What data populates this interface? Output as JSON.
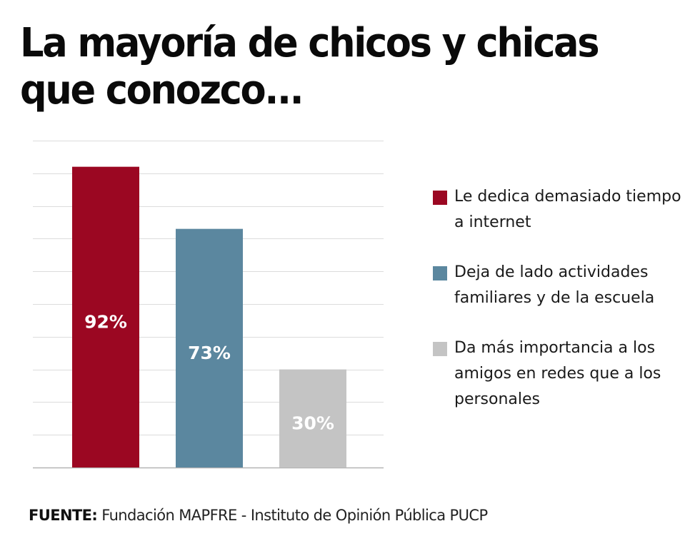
{
  "title": "La mayoría de chicos y chicas que conozco...",
  "chart_data": {
    "type": "bar",
    "title": "La mayoría de chicos y chicas que conozco...",
    "categories": [
      "Le dedica demasiado tiempo a internet",
      "Deja de lado actividades familiares y de la escuela",
      "Da más importancia a los amigos en redes que a los personales"
    ],
    "values": [
      92,
      73,
      30
    ],
    "data_labels": [
      "92%",
      "73%",
      "30%"
    ],
    "colors": [
      "#9b0722",
      "#5b879f",
      "#c4c4c4"
    ],
    "ylim": [
      0,
      100
    ],
    "gridline_step": 10,
    "grid": true,
    "xlabel": "",
    "ylabel": "",
    "legend_position": "right"
  },
  "legend": [
    {
      "label": "Le dedica demasiado tiempo a internet",
      "color": "#9b0722"
    },
    {
      "label": "Deja de lado actividades familiares y de la escuela",
      "color": "#5b879f"
    },
    {
      "label": "Da más importancia a los amigos en redes que a los personales",
      "color": "#c4c4c4"
    }
  ],
  "source": {
    "prefix": "FUENTE:",
    "text": " Fundación MAPFRE - Instituto de Opinión Pública PUCP"
  }
}
